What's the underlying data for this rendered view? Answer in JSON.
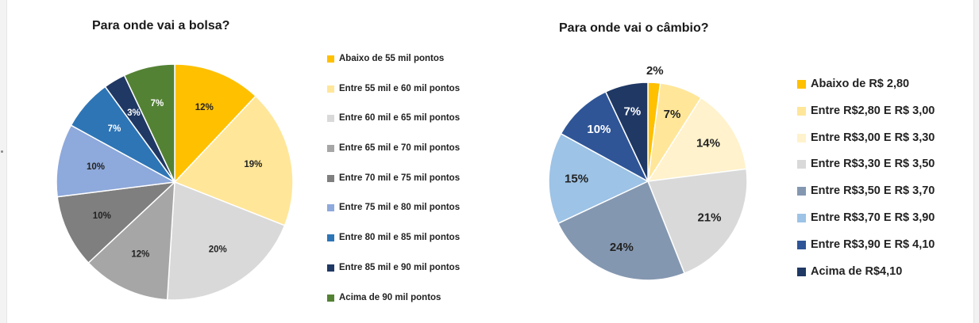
{
  "chart_data": [
    {
      "type": "pie",
      "title": "Para onde vai a bolsa?",
      "legend_position": "right",
      "categories": [
        "Abaixo de 55 mil pontos",
        "Entre 55 mil e 60 mil pontos",
        "Entre 60 mil e 65 mil pontos",
        "Entre 65 mil e 70 mil pontos",
        "Entre 70 mil e 75 mil pontos",
        "Entre 75 mil e 80 mil pontos",
        "Entre 80 mil e 85 mil pontos",
        "Entre 85 mil e 90 mil pontos",
        "Acima de 90 mil pontos"
      ],
      "values": [
        12,
        19,
        20,
        12,
        10,
        10,
        7,
        3,
        7
      ],
      "labels": [
        "12%",
        "19%",
        "20%",
        "12%",
        "10%",
        "10%",
        "7%",
        "3%",
        "7%"
      ],
      "colors": [
        "#FFC000",
        "#FFE699",
        "#D9D9D9",
        "#A6A6A6",
        "#7F7F7F",
        "#8EA9DB",
        "#2E75B6",
        "#203864",
        "#548235"
      ],
      "label_colors": [
        "#222222",
        "#222222",
        "#222222",
        "#222222",
        "#222222",
        "#222222",
        "#ffffff",
        "#ffffff",
        "#ffffff"
      ]
    },
    {
      "type": "pie",
      "title": "Para onde vai o câmbio?",
      "legend_position": "right",
      "categories": [
        "Abaixo de R$ 2,80",
        "Entre R$2,80 E R$ 3,00",
        "Entre R$3,00 E R$ 3,30",
        "Entre R$3,30 E R$ 3,50",
        "Entre R$3,50 E R$ 3,70",
        "Entre R$3,70 E R$ 3,90",
        "Entre R$3,90 E R$ 4,10",
        "Acima de R$4,10"
      ],
      "values": [
        2,
        7,
        14,
        21,
        24,
        15,
        10,
        7
      ],
      "labels": [
        "2%",
        "7%",
        "14%",
        "21%",
        "24%",
        "15%",
        "10%",
        "7%"
      ],
      "colors": [
        "#FFC000",
        "#FFE699",
        "#FFF2CC",
        "#D9D9D9",
        "#8497B0",
        "#9DC3E6",
        "#2F5597",
        "#1F3864"
      ],
      "label_colors": [
        "#222222",
        "#222222",
        "#222222",
        "#222222",
        "#222222",
        "#222222",
        "#ffffff",
        "#ffffff"
      ]
    }
  ]
}
